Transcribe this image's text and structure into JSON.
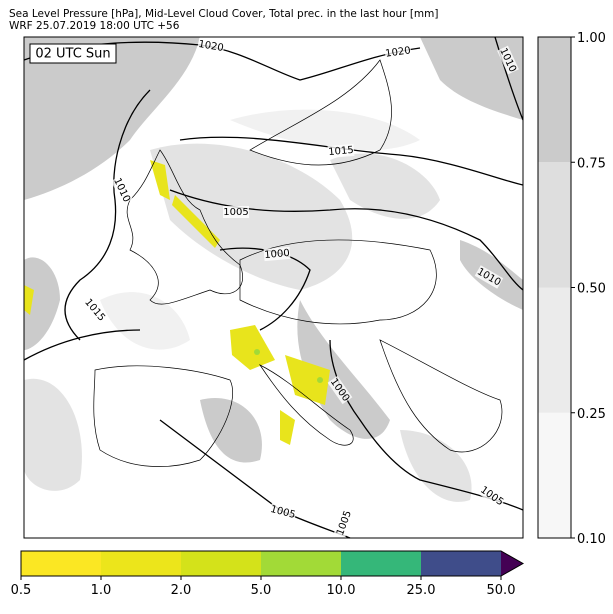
{
  "header": {
    "title": "Sea Level Pressure [hPa], Mid-Level Cloud Cover, Total prec. in the last hour [mm]",
    "subtitle": "WRF 25.07.2019 18:00 UTC +56"
  },
  "map": {
    "time_label": "02 UTC Sun",
    "isobar_labels": [
      "1020",
      "1020",
      "1010",
      "1015",
      "1010",
      "1005",
      "1000",
      "1010",
      "1015",
      "1000",
      "1005",
      "1005",
      "1005"
    ]
  },
  "cloud_colorbar": {
    "labels": [
      "0.10",
      "0.25",
      "0.50",
      "0.75",
      "1.00"
    ],
    "colors": [
      "#f7f7f7",
      "#ebebeb",
      "#dedede",
      "#cbcbcb"
    ]
  },
  "precip_colorbar": {
    "labels": [
      "0.5",
      "1.0",
      "2.0",
      "5.0",
      "10.0",
      "25.0",
      "50.0"
    ],
    "colors": [
      "#fbe723",
      "#ece51b",
      "#d4e21a",
      "#a2da37",
      "#35b779",
      "#3f4d8a"
    ],
    "over_color": "#440154"
  }
}
